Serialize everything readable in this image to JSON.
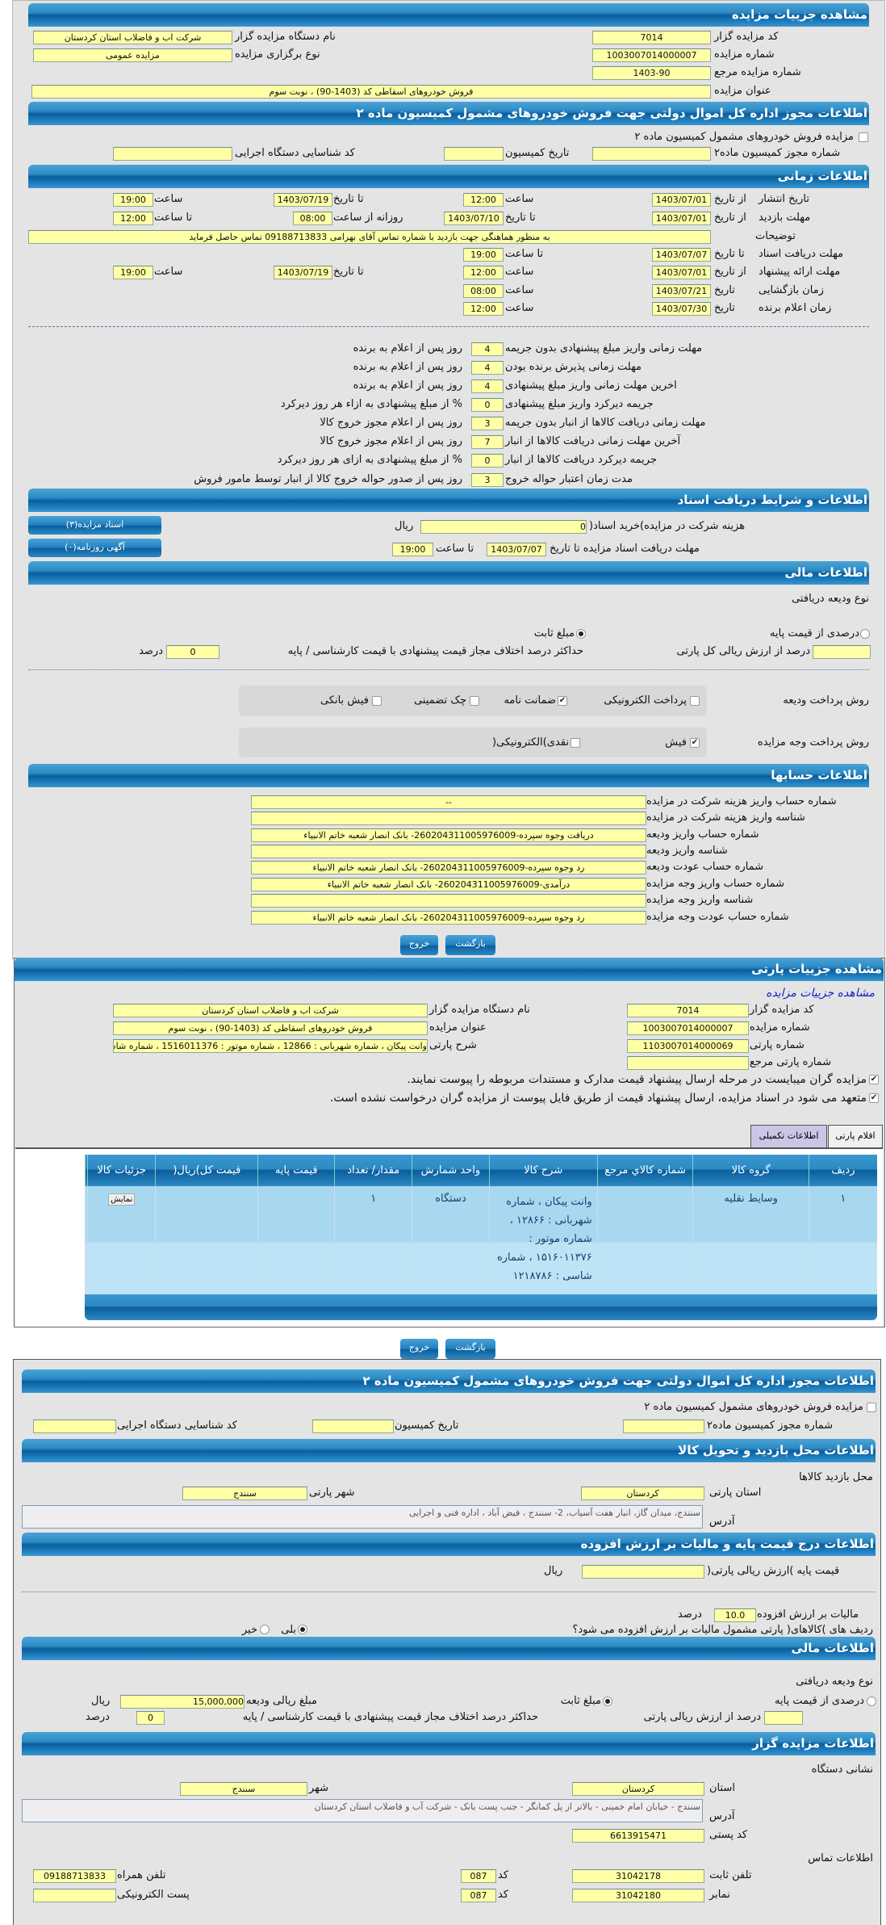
{
  "auction": {
    "title": "مشاهده جزییات مزایده",
    "code_label": "کد مزایده گزار",
    "code": "7014",
    "org_label": "نام دستگاه مزایده گزار",
    "org": "شرکت اب و فاضلاب استان کردستان",
    "number_label": "شماره مزایده",
    "number": "1003007014000007",
    "type_label": "نوع برگزاری مزایده",
    "type": "مزایده عمومی",
    "ref_label": "شماره مزایده مرجع",
    "ref": "1403-90",
    "subject_label": "عنوان مزایده",
    "subject": "فروش خودروهای اسقاطی کد (1403-90) ، نوبت سوم"
  },
  "permit": {
    "title": "اطلاعات مجوز اداره کل اموال دولتی جهت فروش خودروهای مشمول کمیسیون ماده ۲",
    "checkbox_label": "مزایده فروش خودروهای مشمول کمیسیون ماده ۲",
    "checked": false,
    "permit_no_label": "شماره مجوز کمیسیون ماده۲",
    "permit_no": "",
    "date_label": "تاریخ کمیسیون",
    "date": "",
    "exec_label": "کد شناسایی دستگاه اجرایی",
    "exec": ""
  },
  "timing": {
    "title": "اطلاعات زمانی",
    "from_date": "از تاریخ",
    "to_date": "تا تاریخ",
    "date": "تاریخ",
    "time": "ساعت",
    "to_time": "تا ساعت",
    "daily_from": "روزانه از ساعت",
    "publish": {
      "label": "تاریخ انتشار",
      "from": "1403/07/01",
      "from_time": "12:00",
      "to": "1403/07/19",
      "to_time": "19:00"
    },
    "visit": {
      "label": "مهلت بازدید",
      "from": "1403/07/01",
      "to": "1403/07/10",
      "daily_from": "08:00",
      "daily_to": "12:00"
    },
    "notes": {
      "label": "توضیحات",
      "value": "به منظور هماهنگی جهت بازدید با شماره تماس آقای بهرامی 09188713833 تماس حاصل فرمايد"
    },
    "docs": {
      "label": "مهلت دریافت اسناد",
      "to": "1403/07/07",
      "to_time": "19:00"
    },
    "offer": {
      "label": "مهلت ارائه پیشنهاد",
      "from": "1403/07/01",
      "from_time": "12:00",
      "to": "1403/07/19",
      "to_time": "19:00"
    },
    "opening": {
      "label": "زمان بازگشایی",
      "date": "1403/07/21",
      "time": "08:00"
    },
    "winner": {
      "label": "زمان اعلام برنده",
      "date": "1403/07/30",
      "time": "12:00"
    }
  },
  "deadlines": [
    {
      "label": "مهلت زمانی واریز مبلغ پیشنهادی بدون جریمه",
      "value": "4",
      "suffix": "روز پس از اعلام به برنده"
    },
    {
      "label": "مهلت زمانی پذیرش برنده بودن",
      "value": "4",
      "suffix": "روز پس از اعلام به برنده"
    },
    {
      "label": "اخرین مهلت زمانی واریز مبلغ پیشنهادی",
      "value": "4",
      "suffix": "روز پس از اعلام به برنده"
    },
    {
      "label": "جریمه دیرکرد واریز مبلغ پیشنهادی",
      "value": "0",
      "suffix": "% از مبلغ پیشنهادی به ازاء هر روز دیرکرد"
    },
    {
      "label": "مهلت زمانی دریافت کالاها از انبار بدون جریمه",
      "value": "3",
      "suffix": "روز پس از اعلام مجوز خروج کالا"
    },
    {
      "label": "آخرین مهلت زمانی دریافت کالاها از انبار",
      "value": "7",
      "suffix": "روز پس از اعلام مجوز خروج کالا"
    },
    {
      "label": "جریمه دیرکرد دریافت کالاها از انبار",
      "value": "0",
      "suffix": "% از مبلغ پیشنهادی به ازای هر روز دیرکرد"
    },
    {
      "label": "مدت زمان اعتبار حواله خروج",
      "value": "3",
      "suffix": "روز پس از صدور حواله خروج کالا از انبار توسط مامور فروش"
    }
  ],
  "documents": {
    "title": "اطلاعات و شرایط دریافت اسناد",
    "fee_label": "هزینه شرکت در مزایده)خرید اسناد(",
    "fee": "0",
    "fee_unit": "ریال",
    "deadline_label": "مهلت دریافت اسناد مزایده تا تاریخ",
    "deadline_date": "1403/07/07",
    "to_time_label": "تا ساعت",
    "deadline_time": "19:00",
    "docs_button": "اسناد مزایده(۳)",
    "ads_button": "آگهی روزنامه(۰)"
  },
  "finance": {
    "title": "اطلاعات مالی",
    "deposit_type_label": "نوع ودیعه دریافتی",
    "percent_option": "درصدی از قیمت پایه",
    "fixed_option": "مبلغ ثابت",
    "selected": "fixed",
    "percent_label": "درصد از ارزش ریالی کل پارتی",
    "percent": "",
    "max_diff_label": "حداکثر درصد اختلاف مجاز قیمت پیشنهادی با قیمت کارشناسی / پایه",
    "max_diff": "0",
    "percent_unit": "درصد",
    "deposit_method_label": "روش پرداخت ودیعه",
    "deposit_methods": [
      {
        "label": "پرداخت الکترونیکی",
        "checked": false
      },
      {
        "label": "ضمانت نامه",
        "checked": true
      },
      {
        "label": "چک تضمینی",
        "checked": false
      },
      {
        "label": "فیش بانکی",
        "checked": false
      }
    ],
    "payment_method_label": "روش پرداخت وجه مزایده",
    "payment_methods": [
      {
        "label": "فیش",
        "checked": true
      },
      {
        "label": "نقدی)الکترونیکی(",
        "checked": false
      }
    ]
  },
  "accounts": {
    "title": "اطلاعات حسابها",
    "rows": [
      {
        "label": "شماره حساب واریز هزینه شرکت در مزایده",
        "value": "--"
      },
      {
        "label": "شناسه واریز هزینه شرکت در مزایده",
        "value": ""
      },
      {
        "label": "شماره حساب واریز ودیعه",
        "value": "دریافت وجوه سپرده-260204311005976009- بانک انصار شعبه خاتم الانبياء"
      },
      {
        "label": "شناسه واریز ودیعه",
        "value": ""
      },
      {
        "label": "شماره حساب عودت ودیعه",
        "value": "رد وجوه سپرده-260204311005976009- بانک انصار شعبه خاتم الانبياء"
      },
      {
        "label": "شماره حساب واریز وجه مزایده",
        "value": "درآمدی-260204311005976009- بانک انصار شعبه خاتم الانبياء"
      },
      {
        "label": "شناسه واریز وجه مزایده",
        "value": ""
      },
      {
        "label": "شماره حساب عودت وجه مزایده",
        "value": "رد وجوه سپرده-260204311005976009- بانک انصار شعبه خاتم الانبياء"
      }
    ]
  },
  "actions": {
    "back": "بازگشت",
    "exit": "خروج"
  },
  "lot": {
    "title": "مشاهده جزییات پارتی",
    "auction_link": "مشاهده جزییات مزایده",
    "code_label": "کد مزایده گزار",
    "code": "7014",
    "org_label": "نام دستگاه مزایده گزار",
    "org": "شرکت اب و فاضلاب استان کردستان",
    "number_label": "شماره مزایده",
    "number": "1003007014000007",
    "subject_label": "عنوان مزایده",
    "subject": "فروش خودروهای اسقاطی کد (1403-90) ، نوبت سوم",
    "lot_no_label": "شماره پارتی",
    "lot_no": "1103007014000069",
    "desc_label": "شرح پارتی",
    "desc": "وانت پیکان ، شماره شهربانی : 12866 ، شماره موتور : 1516011376 ، شماره شاسی : 1218786",
    "lot_ref_label": "شماره پارتی مرجع",
    "lot_ref": "",
    "check1": "مزایده گران میبایست در مرحله ارسال پیشنهاد قیمت مدارک و مستندات مربوطه را پیوست نمایند.",
    "check2": "متعهد می شود در اسناد مزایده، ارسال پیشنهاد قیمت از طریق فایل پیوست از مزایده گران درخواست نشده است.",
    "tabs": [
      {
        "label": "اقلام پارتی",
        "active": false
      },
      {
        "label": "اطلاعات تکمیلی",
        "active": true
      }
    ],
    "table": {
      "columns": [
        "ردیف",
        "گروه کالا",
        "شماره کالاي مرجع",
        "شرح کالا",
        "واحد شمارش",
        "مقدار/ تعداد",
        "قیمت پایه",
        "قیمت کل)ریال(",
        "جزئیات کالا"
      ],
      "rows": [
        [
          "۱",
          "وسایط نقلیه",
          "",
          "وانت پیکان ، شماره شهربانی : ۱۲۸۶۶ ، شماره موتور : ۱۵۱۶۰۱۱۳۷۶ ، شماره شاسی : ۱۲۱۸۷۸۶",
          "دستگاه",
          "۱",
          "",
          "",
          "نمایش"
        ]
      ]
    }
  },
  "detail": {
    "permit": {
      "title": "اطلاعات مجوز اداره کل اموال دولتی جهت فروش خودروهای مشمول کمیسیون ماده ۲",
      "checkbox_label": "مزایده فروش خودروهای مشمول کمیسیون ماده ۲",
      "permit_no_label": "شماره مجوز کمیسیون ماده۲",
      "permit_no": "",
      "date_label": "تاریخ کمیسیون",
      "date": "",
      "exec_label": "کد شناسایی دستگاه اجرایی",
      "exec": ""
    },
    "visit": {
      "title": "اطلاعات محل بازدید و تحویل کالا",
      "location_label": "محل بازدید کالاها",
      "province_label": "استان پارتی",
      "province": "کردستان",
      "city_label": "شهر پارتی",
      "city": "سنندج",
      "address_label": "آدرس",
      "address": "سنندج، میدان گاز، انبار هفت آسیاب، 2- سنندج ، فیض آباد ، اداره فنی و اجرایی"
    },
    "price": {
      "title": "اطلاعات درج قیمت پایه و مالیات بر ارزش افزوده",
      "base_label": "قیمت پایه )ارزش ریالی پارتی(",
      "base": "",
      "base_unit": "ریال",
      "vat_label": "مالیات بر ارزش افزوده",
      "vat": "10.0",
      "vat_unit": "درصد",
      "vat_q": "ردیف های )کالاهای( پارتی مشمول مالیات بر ارزش افزوده می شود؟",
      "yes": "بلی",
      "no": "خیر",
      "vat_selected": "yes"
    },
    "finance": {
      "title": "اطلاعات مالی",
      "deposit_type_label": "نوع ودیعه دریافتی",
      "percent_option": "درصدی از قیمت پایه",
      "fixed_option": "مبلغ ثابت",
      "selected": "fixed",
      "amount_label": "مبلغ ریالی ودیعه",
      "amount": "15,000,000",
      "amount_unit": "ریال",
      "percent_label": "درصد از ارزش ریالی پارتی",
      "percent": "",
      "max_diff_label": "حداکثر درصد اختلاف مجاز قیمت پیشنهادی با قیمت کارشناسی / پایه",
      "max_diff": "0",
      "percent_unit": "درصد"
    },
    "auctioneer": {
      "title": "اطلاعات مزایده گزار",
      "address_title": "نشانی دستگاه",
      "province_label": "استان",
      "province": "کردستان",
      "city_label": "شهر",
      "city": "سنندج",
      "address_label": "آدرس",
      "address": "سنندج - خیابان امام خمینی - بالاتر از پل کمانگر - جنب پست بانک - شرکت آب و فاضلاب استان کردستان",
      "postal_label": "کد پستی",
      "postal": "6613915471",
      "contact_title": "اطلاعات تماس",
      "phone_label": "تلفن ثابت",
      "phone": "31042178",
      "code_label": "کد",
      "phone_code": "087",
      "mobile_label": "تلفن همراه",
      "mobile": "09188713833",
      "fax_label": "نمابر",
      "fax": "31042180",
      "fax_code": "087",
      "email_label": "پست الکترونیکی",
      "email": ""
    }
  },
  "colors": {
    "header": "#1f7fbf",
    "field": "#ffffa6",
    "panel": "#e4e4e4",
    "table_row": "#a8d8f0",
    "link": "#1a1acc"
  }
}
